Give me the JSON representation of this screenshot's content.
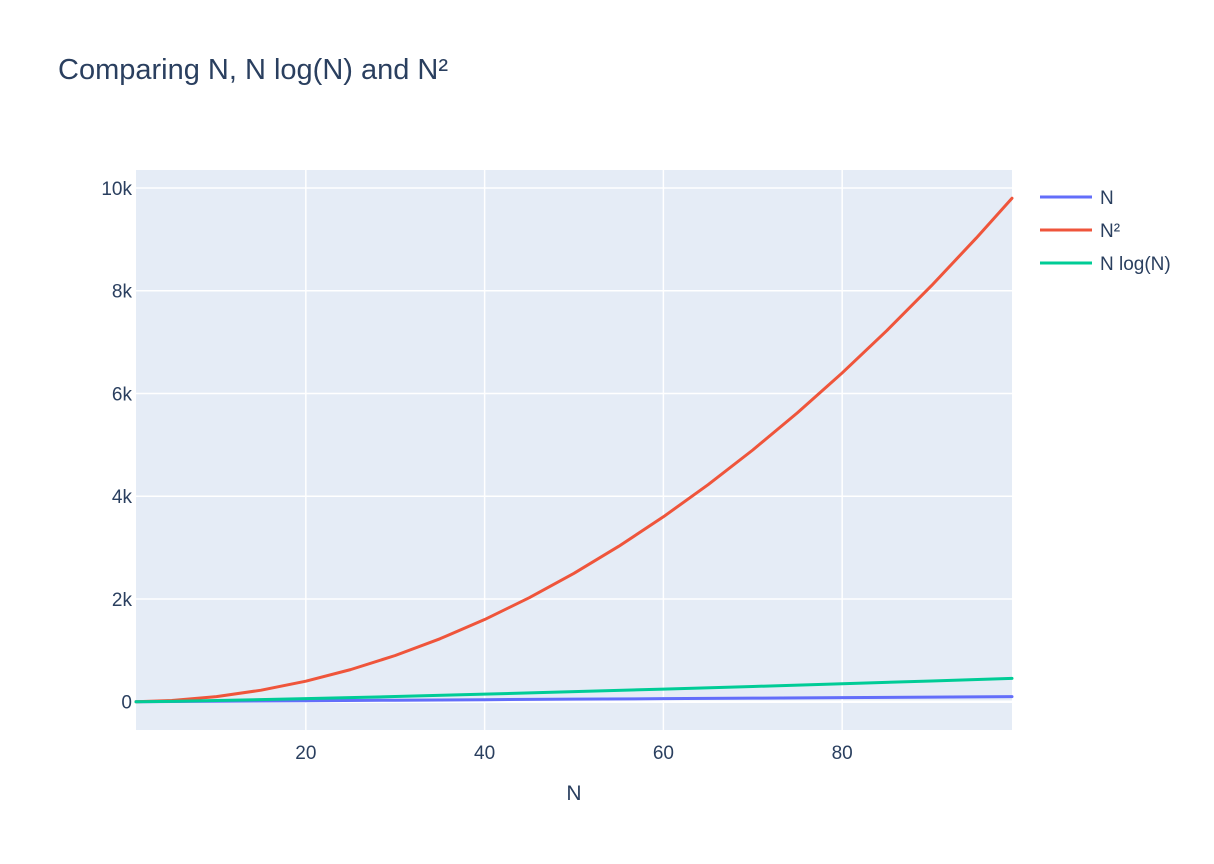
{
  "chart_data": {
    "type": "line",
    "title": "Comparing N, N log(N) and N²",
    "xlabel": "N",
    "ylabel": "",
    "xlim": [
      1,
      99
    ],
    "ylim": [
      -550,
      10350
    ],
    "x_ticks": [
      20,
      40,
      60,
      80
    ],
    "x_tick_labels": [
      "20",
      "40",
      "60",
      "80"
    ],
    "y_ticks": [
      0,
      2000,
      4000,
      6000,
      8000,
      10000
    ],
    "y_tick_labels": [
      "0",
      "2k",
      "4k",
      "6k",
      "8k",
      "10k"
    ],
    "grid": true,
    "legend": "right",
    "plot_bgcolor": "#e5ecf6",
    "series": [
      {
        "name": "N",
        "color": "#636efa",
        "x": [
          1,
          5,
          10,
          20,
          30,
          40,
          50,
          60,
          70,
          80,
          90,
          99
        ],
        "y": [
          1,
          5,
          10,
          20,
          30,
          40,
          50,
          60,
          70,
          80,
          90,
          99
        ]
      },
      {
        "name": "N²",
        "color": "#ef553b",
        "x": [
          1,
          5,
          10,
          15,
          20,
          25,
          30,
          35,
          40,
          45,
          50,
          55,
          60,
          65,
          70,
          75,
          80,
          85,
          90,
          95,
          99
        ],
        "y": [
          1,
          25,
          100,
          225,
          400,
          625,
          900,
          1225,
          1600,
          2025,
          2500,
          3025,
          3600,
          4225,
          4900,
          5625,
          6400,
          7225,
          8100,
          9025,
          9801
        ]
      },
      {
        "name": "N log(N)",
        "color": "#00cc96",
        "x": [
          1,
          5,
          10,
          20,
          30,
          40,
          50,
          60,
          70,
          80,
          90,
          99
        ],
        "y": [
          0,
          8,
          23,
          60,
          102,
          148,
          196,
          246,
          297,
          351,
          405,
          455
        ]
      }
    ]
  }
}
